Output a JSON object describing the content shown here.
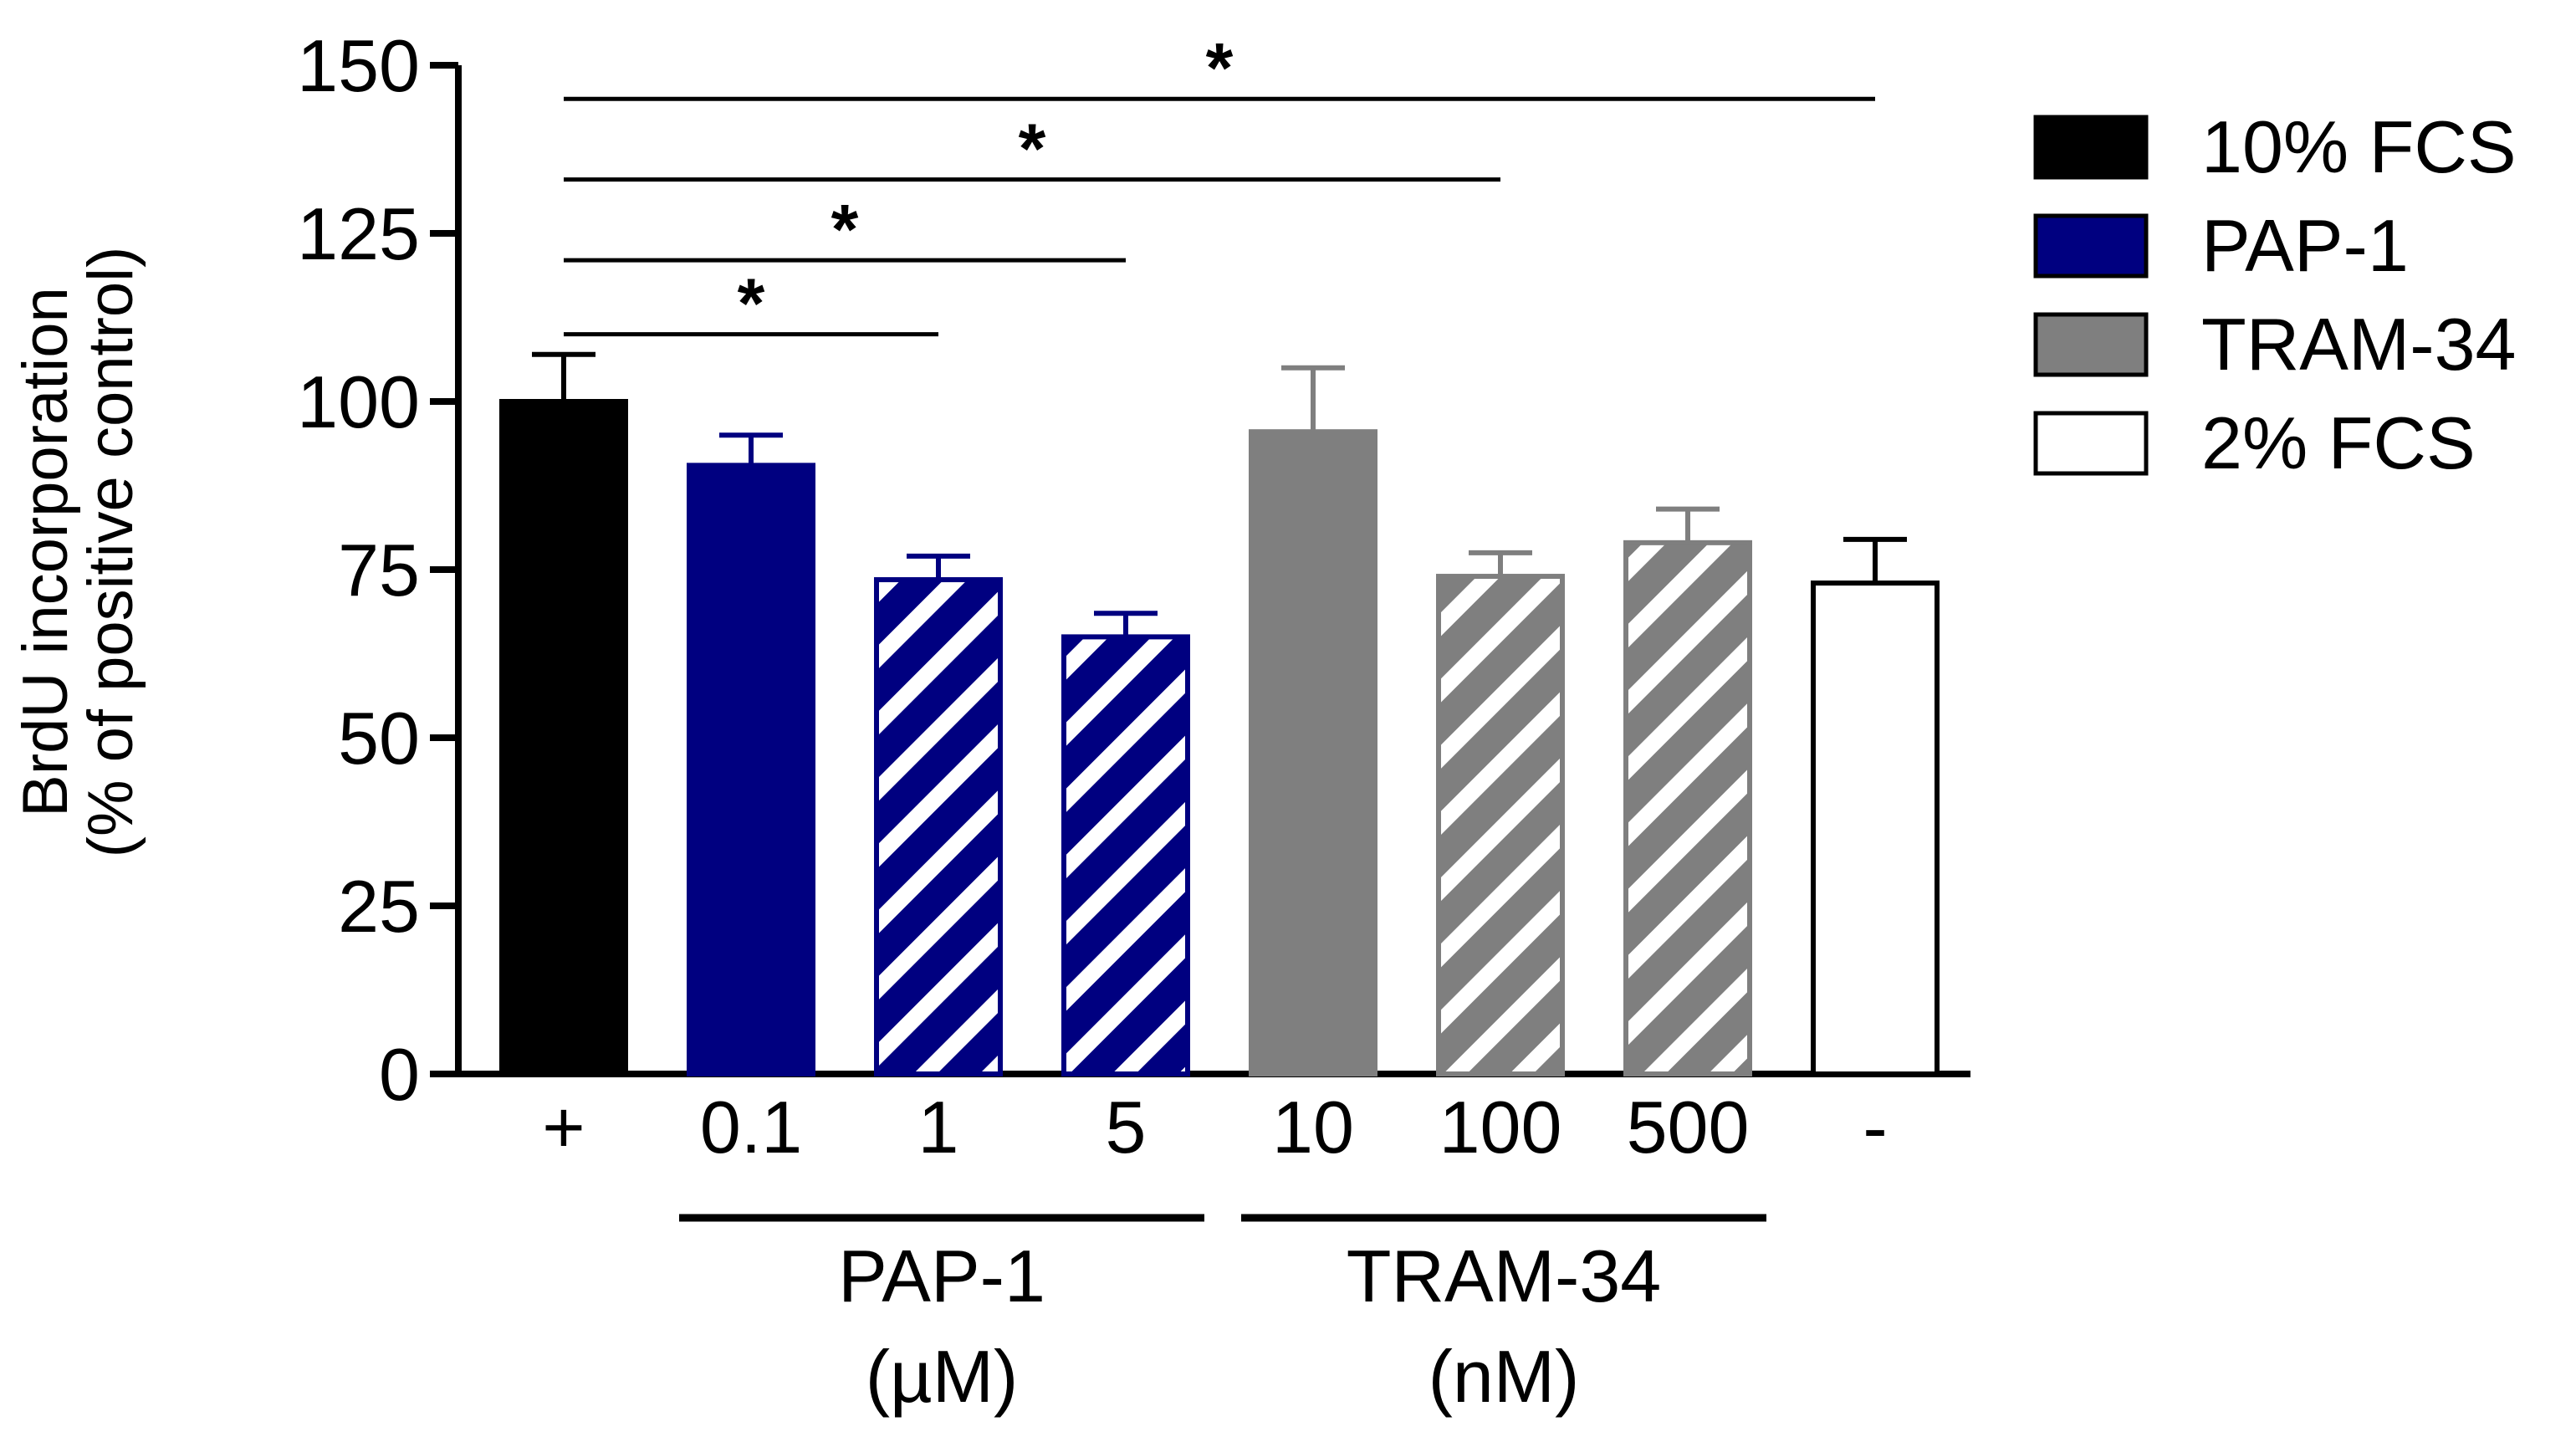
{
  "chart_data": {
    "type": "bar",
    "ylabel_line1": "BrdU incorporation",
    "ylabel_line2": "(% of positive control)",
    "ylim": [
      0,
      150
    ],
    "yticks": [
      0,
      25,
      50,
      75,
      100,
      125,
      150
    ],
    "categories": [
      "+",
      "0.1",
      "1",
      "5",
      "10",
      "100",
      "500",
      "-"
    ],
    "values": [
      100,
      90.5,
      73.5,
      65,
      95.5,
      74,
      79,
      73
    ],
    "errors": [
      7,
      4.5,
      3.5,
      3.5,
      9.5,
      3.5,
      5,
      6.5
    ],
    "bar_series": [
      "10% FCS",
      "PAP-1",
      "PAP-1",
      "PAP-1",
      "TRAM-34",
      "TRAM-34",
      "TRAM-34",
      "2% FCS"
    ],
    "hatched": [
      false,
      false,
      true,
      true,
      false,
      true,
      true,
      false
    ],
    "legend": [
      {
        "name": "10% FCS",
        "color": "#000000"
      },
      {
        "name": "PAP-1",
        "color": "#000080"
      },
      {
        "name": "TRAM-34",
        "color": "#7f7f7f"
      },
      {
        "name": "2% FCS",
        "color": "#ffffff"
      }
    ],
    "legend_position": "top-right",
    "groups": [
      {
        "label": "PAP-1",
        "unit": "(µM)",
        "from": 1,
        "to": 3
      },
      {
        "label": "TRAM-34",
        "unit": "(nM)",
        "from": 4,
        "to": 6
      }
    ],
    "significance": [
      {
        "from": 0,
        "to": 2,
        "label": "*",
        "y": 110
      },
      {
        "from": 0,
        "to": 3,
        "label": "*",
        "y": 121
      },
      {
        "from": 0,
        "to": 5,
        "label": "*",
        "y": 133
      },
      {
        "from": 0,
        "to": 7,
        "label": "*",
        "y": 145
      }
    ],
    "grid": false
  }
}
